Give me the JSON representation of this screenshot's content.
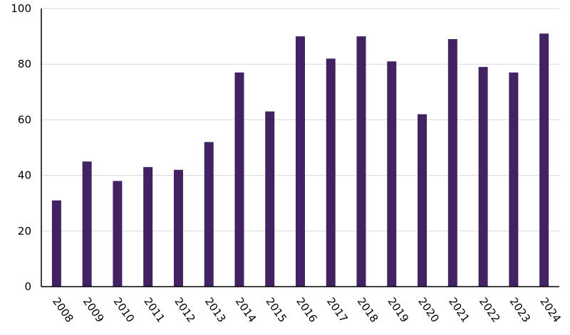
{
  "chart_data": {
    "type": "bar",
    "title": "",
    "xlabel": "",
    "ylabel": "",
    "categories": [
      "2008",
      "2009",
      "2010",
      "2011",
      "2012",
      "2013",
      "2014",
      "2015",
      "2016",
      "2017",
      "2018",
      "2019",
      "2020",
      "2021",
      "2022",
      "2023",
      "2024"
    ],
    "values": [
      31,
      45,
      38,
      43,
      42,
      52,
      77,
      63,
      90,
      82,
      90,
      81,
      62,
      89,
      79,
      77,
      91
    ],
    "ylim": [
      0,
      100
    ],
    "yticks": [
      "0",
      "20",
      "40",
      "60",
      "80",
      "100"
    ],
    "grid": true,
    "legend": "none",
    "bar_color": "#432263",
    "grid_color": "#d9d9d9",
    "axis_color": "#000000"
  }
}
